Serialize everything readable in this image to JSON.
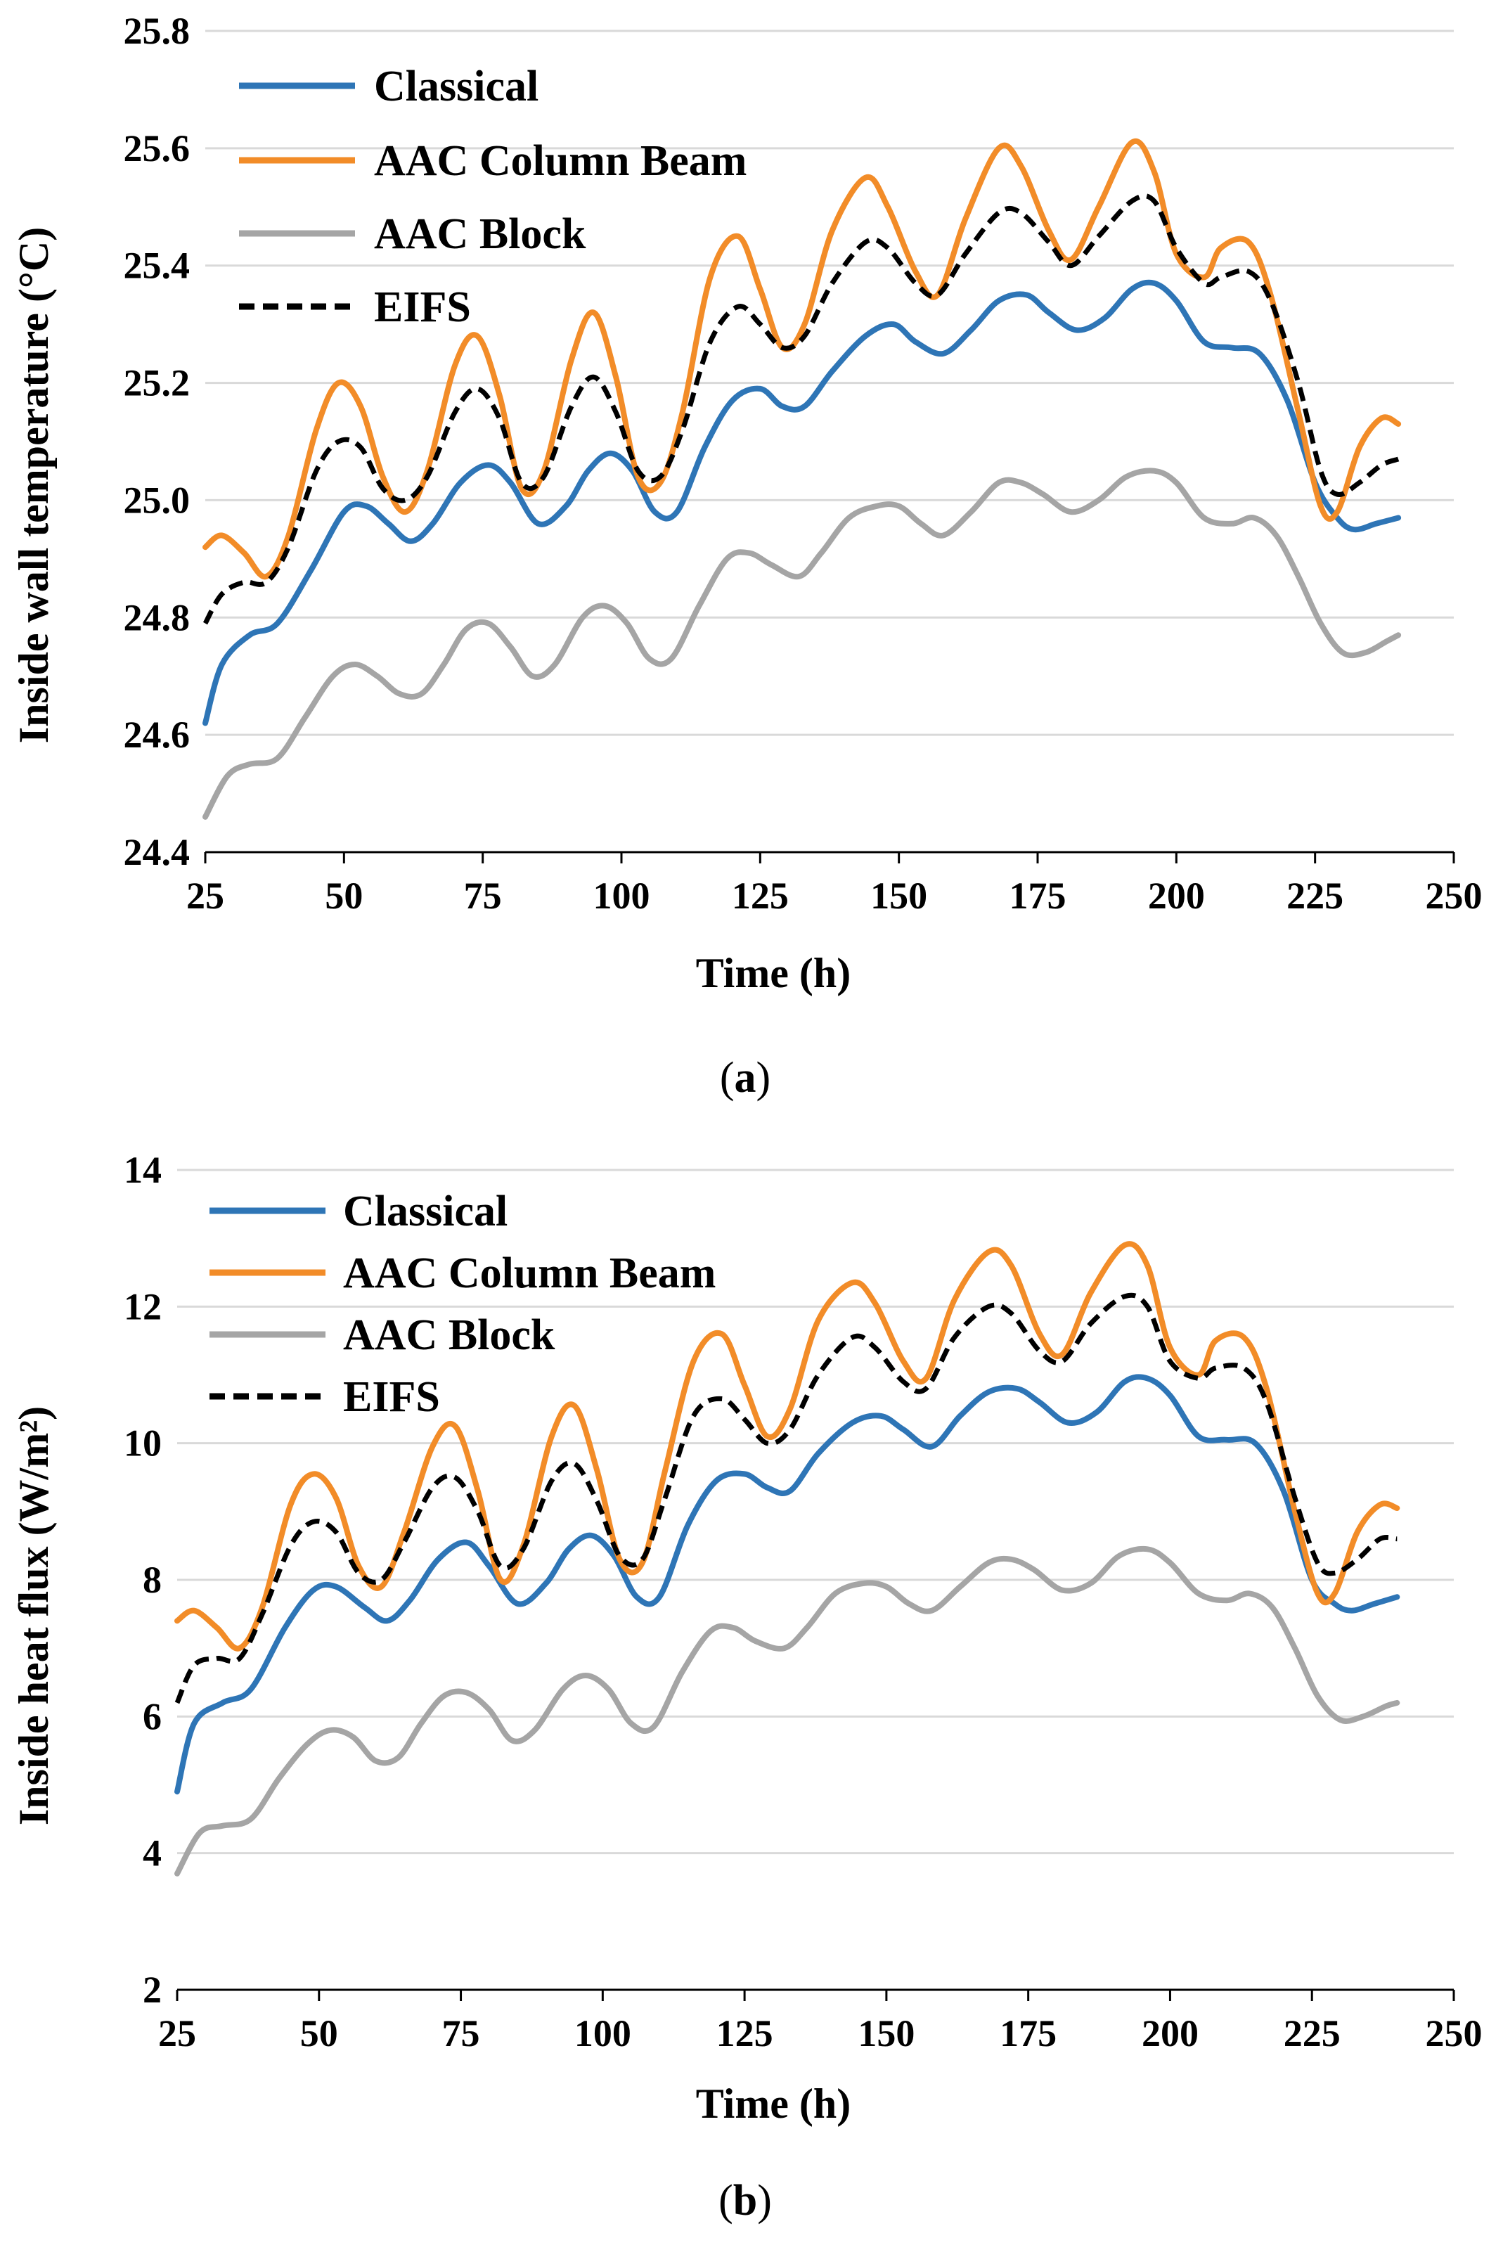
{
  "chart_data": [
    {
      "type": "line",
      "caption_open": "(",
      "caption_letter": "a",
      "caption_close": ")",
      "xlabel": "Time (h)",
      "ylabel": "Inside wall temperature (°C)",
      "xlim": [
        25,
        250
      ],
      "ylim": [
        24.4,
        25.8
      ],
      "xticks": [
        25,
        50,
        75,
        100,
        125,
        150,
        175,
        200,
        225,
        250
      ],
      "yticks": [
        "24.4",
        "24.6",
        "24.8",
        "25.0",
        "25.2",
        "25.4",
        "25.6",
        "25.8"
      ],
      "grid": "horizontal",
      "legend": "top-left",
      "series": [
        {
          "name": "Classical",
          "color": "#2E75B6",
          "dash": "solid",
          "x": [
            25,
            28,
            33,
            38,
            44,
            50,
            54,
            58,
            62,
            66,
            71,
            76,
            80,
            85,
            90,
            94,
            98,
            102,
            106,
            110,
            115,
            120,
            125,
            129,
            133,
            138,
            144,
            149,
            153,
            158,
            163,
            168,
            173,
            177,
            182,
            187,
            192,
            196,
            200,
            205,
            210,
            215,
            220,
            225,
            229,
            232,
            236,
            240
          ],
          "y": [
            24.62,
            24.72,
            24.77,
            24.79,
            24.88,
            24.98,
            24.99,
            24.96,
            24.93,
            24.96,
            25.03,
            25.06,
            25.03,
            24.96,
            24.99,
            25.05,
            25.08,
            25.05,
            24.98,
            24.98,
            25.09,
            25.17,
            25.19,
            25.16,
            25.16,
            25.22,
            25.28,
            25.3,
            25.27,
            25.25,
            25.29,
            25.34,
            25.35,
            25.32,
            25.29,
            25.31,
            25.36,
            25.37,
            25.34,
            25.27,
            25.26,
            25.25,
            25.17,
            25.03,
            24.97,
            24.95,
            24.96,
            24.97
          ]
        },
        {
          "name": "AAC Column Beam",
          "color": "#F28C28",
          "dash": "solid",
          "x": [
            25,
            28,
            32,
            36,
            40,
            45,
            49,
            53,
            57,
            61,
            65,
            70,
            74,
            78,
            82,
            86,
            91,
            95,
            99,
            103,
            107,
            111,
            116,
            121,
            125,
            129,
            133,
            138,
            144,
            148,
            153,
            157,
            162,
            168,
            172,
            177,
            181,
            186,
            192,
            196,
            200,
            205,
            208,
            213,
            217,
            222,
            226,
            229,
            233,
            237,
            240
          ],
          "y": [
            24.92,
            24.94,
            24.91,
            24.87,
            24.94,
            25.12,
            25.2,
            25.16,
            25.04,
            24.98,
            25.05,
            25.23,
            25.28,
            25.18,
            25.02,
            25.05,
            25.24,
            25.32,
            25.21,
            25.04,
            25.03,
            25.15,
            25.38,
            25.45,
            25.36,
            25.26,
            25.3,
            25.46,
            25.55,
            25.5,
            25.39,
            25.35,
            25.48,
            25.6,
            25.57,
            25.46,
            25.41,
            25.5,
            25.61,
            25.56,
            25.42,
            25.38,
            25.43,
            25.44,
            25.35,
            25.15,
            24.99,
            24.98,
            25.09,
            25.14,
            25.13
          ]
        },
        {
          "name": "AAC Block",
          "color": "#A5A5A5",
          "dash": "solid",
          "x": [
            25,
            29,
            33,
            38,
            43,
            48,
            52,
            56,
            60,
            64,
            68,
            72,
            76,
            80,
            84,
            88,
            93,
            97,
            101,
            105,
            109,
            114,
            119,
            123,
            127,
            132,
            136,
            141,
            146,
            150,
            154,
            158,
            163,
            168,
            172,
            176,
            181,
            186,
            191,
            196,
            200,
            205,
            210,
            214,
            218,
            222,
            226,
            230,
            234,
            238,
            240
          ],
          "y": [
            24.46,
            24.53,
            24.55,
            24.56,
            24.63,
            24.7,
            24.72,
            24.7,
            24.67,
            24.67,
            24.72,
            24.78,
            24.79,
            24.75,
            24.7,
            24.72,
            24.8,
            24.82,
            24.79,
            24.73,
            24.73,
            24.82,
            24.9,
            24.91,
            24.89,
            24.87,
            24.91,
            24.97,
            24.99,
            24.99,
            24.96,
            24.94,
            24.98,
            25.03,
            25.03,
            25.01,
            24.98,
            25.0,
            25.04,
            25.05,
            25.03,
            24.97,
            24.96,
            24.97,
            24.94,
            24.87,
            24.79,
            24.74,
            24.74,
            24.76,
            24.77
          ]
        },
        {
          "name": "EIFS",
          "color": "#000000",
          "dash": "dashed",
          "x": [
            25,
            28,
            32,
            36,
            40,
            45,
            49,
            53,
            57,
            61,
            65,
            70,
            74,
            78,
            82,
            86,
            91,
            95,
            99,
            103,
            107,
            111,
            116,
            121,
            125,
            129,
            133,
            138,
            144,
            148,
            153,
            157,
            162,
            168,
            172,
            177,
            181,
            186,
            192,
            196,
            200,
            205,
            208,
            213,
            217,
            222,
            226,
            229,
            233,
            237,
            240
          ],
          "y": [
            24.79,
            24.84,
            24.86,
            24.86,
            24.92,
            25.05,
            25.1,
            25.09,
            25.02,
            25.0,
            25.04,
            25.15,
            25.19,
            25.14,
            25.03,
            25.04,
            25.16,
            25.21,
            25.15,
            25.05,
            25.04,
            25.12,
            25.27,
            25.33,
            25.3,
            25.26,
            25.28,
            25.37,
            25.44,
            25.43,
            25.37,
            25.35,
            25.42,
            25.49,
            25.49,
            25.44,
            25.4,
            25.45,
            25.51,
            25.51,
            25.43,
            25.37,
            25.38,
            25.39,
            25.34,
            25.2,
            25.05,
            25.01,
            25.03,
            25.06,
            25.07
          ]
        }
      ]
    },
    {
      "type": "line",
      "caption_open": "(",
      "caption_letter": "b",
      "caption_close": ")",
      "xlabel": "Time (h)",
      "ylabel": "Inside heat flux (W/m²)",
      "xlim": [
        25,
        250
      ],
      "ylim": [
        2,
        14
      ],
      "xticks": [
        25,
        50,
        75,
        100,
        125,
        150,
        175,
        200,
        225,
        250
      ],
      "yticks": [
        "2",
        "4",
        "6",
        "8",
        "10",
        "12",
        "14"
      ],
      "grid": "horizontal",
      "legend": "top-left",
      "series": [
        {
          "name": "Classical",
          "color": "#2E75B6",
          "dash": "solid",
          "x": [
            25,
            28,
            33,
            38,
            44,
            49,
            53,
            58,
            62,
            66,
            71,
            76,
            80,
            85,
            90,
            94,
            98,
            102,
            106,
            110,
            115,
            120,
            125,
            129,
            133,
            138,
            144,
            149,
            153,
            158,
            163,
            168,
            173,
            177,
            182,
            187,
            192,
            196,
            200,
            205,
            210,
            215,
            220,
            225,
            229,
            232,
            236,
            240
          ],
          "y": [
            4.9,
            5.9,
            6.2,
            6.4,
            7.3,
            7.85,
            7.9,
            7.6,
            7.4,
            7.7,
            8.3,
            8.55,
            8.2,
            7.65,
            7.95,
            8.45,
            8.65,
            8.35,
            7.75,
            7.75,
            8.8,
            9.45,
            9.55,
            9.35,
            9.3,
            9.85,
            10.3,
            10.4,
            10.2,
            9.95,
            10.4,
            10.75,
            10.8,
            10.6,
            10.3,
            10.45,
            10.9,
            10.95,
            10.7,
            10.1,
            10.05,
            10.0,
            9.3,
            8.0,
            7.65,
            7.55,
            7.65,
            7.75
          ]
        },
        {
          "name": "AAC Column Beam",
          "color": "#F28C28",
          "dash": "solid",
          "x": [
            25,
            28,
            32,
            36,
            40,
            45,
            49,
            53,
            57,
            61,
            65,
            70,
            74,
            78,
            82,
            86,
            91,
            95,
            99,
            103,
            107,
            111,
            116,
            121,
            125,
            129,
            133,
            138,
            144,
            148,
            153,
            157,
            162,
            168,
            172,
            177,
            181,
            186,
            192,
            196,
            200,
            205,
            208,
            213,
            217,
            222,
            226,
            229,
            233,
            237,
            240
          ],
          "y": [
            7.4,
            7.55,
            7.3,
            7.0,
            7.6,
            9.1,
            9.55,
            9.2,
            8.2,
            7.9,
            8.7,
            9.95,
            10.25,
            9.3,
            8.0,
            8.5,
            10.1,
            10.55,
            9.6,
            8.3,
            8.25,
            9.6,
            11.2,
            11.6,
            10.85,
            10.1,
            10.5,
            11.8,
            12.35,
            12.05,
            11.2,
            10.95,
            12.1,
            12.8,
            12.6,
            11.6,
            11.3,
            12.2,
            12.9,
            12.6,
            11.4,
            11.0,
            11.5,
            11.55,
            10.8,
            9.0,
            7.8,
            7.8,
            8.7,
            9.1,
            9.05
          ]
        },
        {
          "name": "AAC Block",
          "color": "#A5A5A5",
          "dash": "solid",
          "x": [
            25,
            29,
            33,
            38,
            43,
            48,
            52,
            56,
            60,
            64,
            68,
            72,
            76,
            80,
            84,
            88,
            93,
            97,
            101,
            105,
            109,
            114,
            119,
            123,
            127,
            132,
            136,
            141,
            146,
            150,
            154,
            158,
            163,
            168,
            172,
            176,
            181,
            186,
            191,
            196,
            200,
            205,
            210,
            214,
            218,
            222,
            226,
            230,
            234,
            238,
            240
          ],
          "y": [
            3.7,
            4.3,
            4.4,
            4.5,
            5.1,
            5.6,
            5.8,
            5.7,
            5.35,
            5.4,
            5.9,
            6.3,
            6.35,
            6.1,
            5.65,
            5.8,
            6.4,
            6.6,
            6.4,
            5.9,
            5.85,
            6.65,
            7.25,
            7.3,
            7.1,
            7.0,
            7.3,
            7.8,
            7.95,
            7.9,
            7.65,
            7.55,
            7.9,
            8.25,
            8.3,
            8.15,
            7.85,
            7.95,
            8.35,
            8.45,
            8.25,
            7.8,
            7.7,
            7.8,
            7.6,
            7.0,
            6.3,
            5.95,
            6.0,
            6.15,
            6.2
          ]
        },
        {
          "name": "EIFS",
          "color": "#000000",
          "dash": "dashed",
          "x": [
            25,
            28,
            32,
            36,
            40,
            45,
            49,
            53,
            57,
            61,
            65,
            70,
            74,
            78,
            82,
            86,
            91,
            95,
            99,
            103,
            107,
            111,
            116,
            121,
            125,
            129,
            133,
            138,
            144,
            148,
            153,
            157,
            162,
            168,
            172,
            177,
            181,
            186,
            192,
            196,
            200,
            205,
            208,
            213,
            217,
            222,
            226,
            229,
            233,
            237,
            240
          ],
          "y": [
            6.2,
            6.75,
            6.85,
            6.85,
            7.5,
            8.5,
            8.85,
            8.7,
            8.1,
            8.0,
            8.55,
            9.35,
            9.5,
            9.0,
            8.2,
            8.45,
            9.45,
            9.7,
            9.15,
            8.35,
            8.3,
            9.2,
            10.4,
            10.65,
            10.35,
            10.0,
            10.2,
            11.0,
            11.55,
            11.4,
            10.9,
            10.8,
            11.55,
            12.0,
            11.9,
            11.35,
            11.2,
            11.75,
            12.15,
            12.0,
            11.2,
            10.95,
            11.1,
            11.1,
            10.6,
            9.2,
            8.25,
            8.1,
            8.3,
            8.6,
            8.6
          ]
        }
      ]
    }
  ]
}
